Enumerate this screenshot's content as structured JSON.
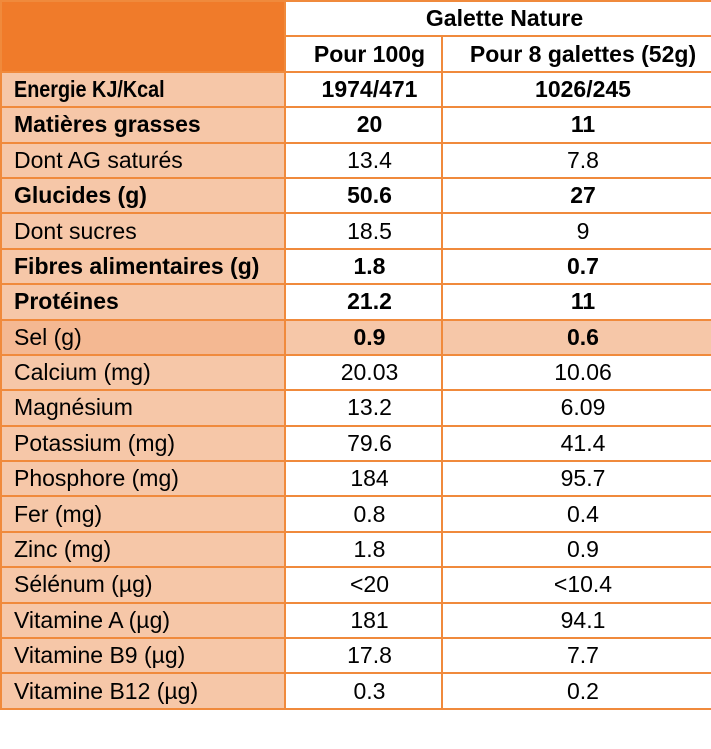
{
  "header": {
    "product": "Galette Nature",
    "col1": "Pour 100g",
    "col2": "Pour 8 galettes (52g)"
  },
  "rows": [
    {
      "label": "Energie KJ/Kcal",
      "v1": "1974/471",
      "v2": "1026/245"
    },
    {
      "label": "Matières grasses",
      "v1": "20",
      "v2": "11"
    },
    {
      "label": "Dont AG saturés",
      "v1": "13.4",
      "v2": "7.8"
    },
    {
      "label": "Glucides (g)",
      "v1": "50.6",
      "v2": "27"
    },
    {
      "label": "Dont sucres",
      "v1": "18.5",
      "v2": "9"
    },
    {
      "label": "Fibres alimentaires (g)",
      "v1": "1.8",
      "v2": "0.7"
    },
    {
      "label": "Protéines",
      "v1": "21.2",
      "v2": "11"
    },
    {
      "label": "Sel (g)",
      "v1": "0.9",
      "v2": "0.6"
    },
    {
      "label": "Calcium (mg)",
      "v1": "20.03",
      "v2": "10.06"
    },
    {
      "label": "Magnésium",
      "v1": "13.2",
      "v2": "6.09"
    },
    {
      "label": "Potassium (mg)",
      "v1": "79.6",
      "v2": "41.4"
    },
    {
      "label": "Phosphore (mg)",
      "v1": "184",
      "v2": "95.7"
    },
    {
      "label": "Fer (mg)",
      "v1": "0.8",
      "v2": "0.4"
    },
    {
      "label": "Zinc (mg)",
      "v1": "1.8",
      "v2": "0.9"
    },
    {
      "label": "Sélénum (µg)",
      "v1": "<20",
      "v2": "<10.4"
    },
    {
      "label": "Vitamine A (µg)",
      "v1": "181",
      "v2": "94.1"
    },
    {
      "label": "Vitamine B9 (µg)",
      "v1": "17.8",
      "v2": "7.7"
    },
    {
      "label": "Vitamine B12 (µg)",
      "v1": "0.3",
      "v2": "0.2"
    }
  ],
  "colors": {
    "header_orange": "#F07B2A",
    "label_bg": "#F6C7A8",
    "border": "#F08A3C"
  }
}
